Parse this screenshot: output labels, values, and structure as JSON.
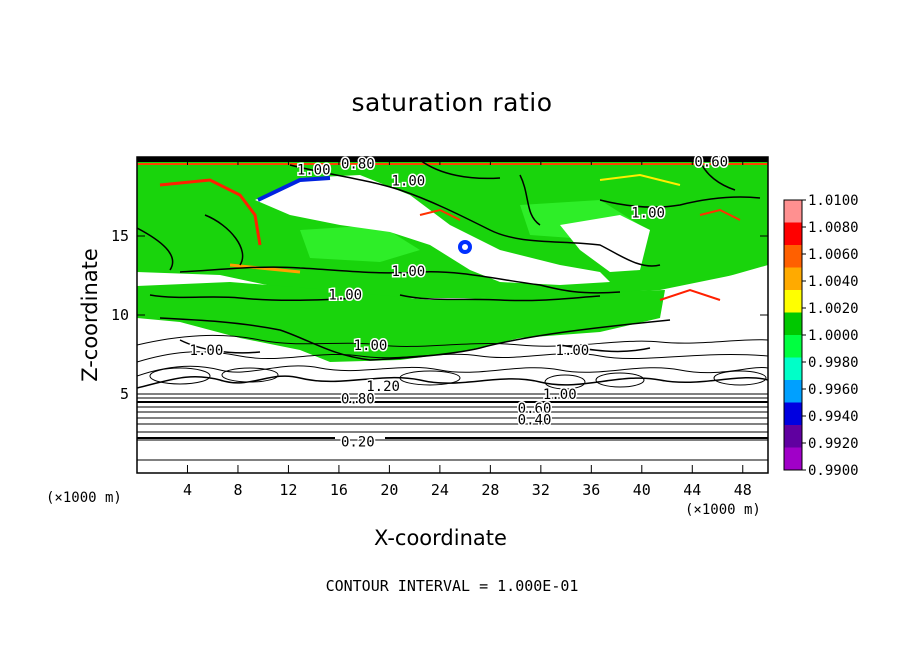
{
  "chart_data": {
    "type": "heatmap",
    "title": "saturation ratio",
    "xlabel": "X-coordinate",
    "ylabel": "Z-coordinate",
    "x_unit": "(×1000 m)",
    "y_unit": "(×1000 m)",
    "xlim": [
      0,
      50
    ],
    "ylim": [
      0,
      20
    ],
    "x_ticks": [
      4,
      8,
      12,
      16,
      20,
      24,
      28,
      32,
      36,
      40,
      44,
      48
    ],
    "y_ticks": [
      5,
      10,
      15
    ],
    "footer": "CONTOUR INTERVAL = 1.000E-01",
    "colorbar": {
      "levels": [
        "1.0100",
        "1.0080",
        "1.0060",
        "1.0040",
        "1.0020",
        "1.0000",
        "0.9980",
        "0.9960",
        "0.9940",
        "0.9920",
        "0.9900"
      ],
      "colors": [
        "#ff9090",
        "#ff0000",
        "#ff6000",
        "#ffaa00",
        "#ffff00",
        "#00c800",
        "#00ff40",
        "#00ffc8",
        "#00a0ff",
        "#0000e0",
        "#6000a0",
        "#a000c8"
      ]
    },
    "contour_labels": [
      {
        "text": "1.00",
        "x": 14.0,
        "z": 19.2
      },
      {
        "text": "0.80",
        "x": 17.5,
        "z": 19.6
      },
      {
        "text": "1.00",
        "x": 21.5,
        "z": 18.5
      },
      {
        "text": "0.60",
        "x": 45.5,
        "z": 19.7
      },
      {
        "text": "1.00",
        "x": 40.5,
        "z": 16.5
      },
      {
        "text": "1.00",
        "x": 21.5,
        "z": 12.8
      },
      {
        "text": "1.00",
        "x": 16.5,
        "z": 11.3
      },
      {
        "text": "1.00",
        "x": 18.5,
        "z": 8.1
      },
      {
        "text": "1.00",
        "x": 5.5,
        "z": 7.8
      },
      {
        "text": "1.00",
        "x": 34.5,
        "z": 7.8
      },
      {
        "text": "1.20",
        "x": 19.5,
        "z": 5.5
      },
      {
        "text": "0.80",
        "x": 17.5,
        "z": 4.7
      },
      {
        "text": "1.00",
        "x": 33.5,
        "z": 5.0
      },
      {
        "text": "0.60",
        "x": 31.5,
        "z": 4.1
      },
      {
        "text": "0.40",
        "x": 31.5,
        "z": 3.4
      },
      {
        "text": "0.20",
        "x": 17.5,
        "z": 2.0
      }
    ]
  }
}
